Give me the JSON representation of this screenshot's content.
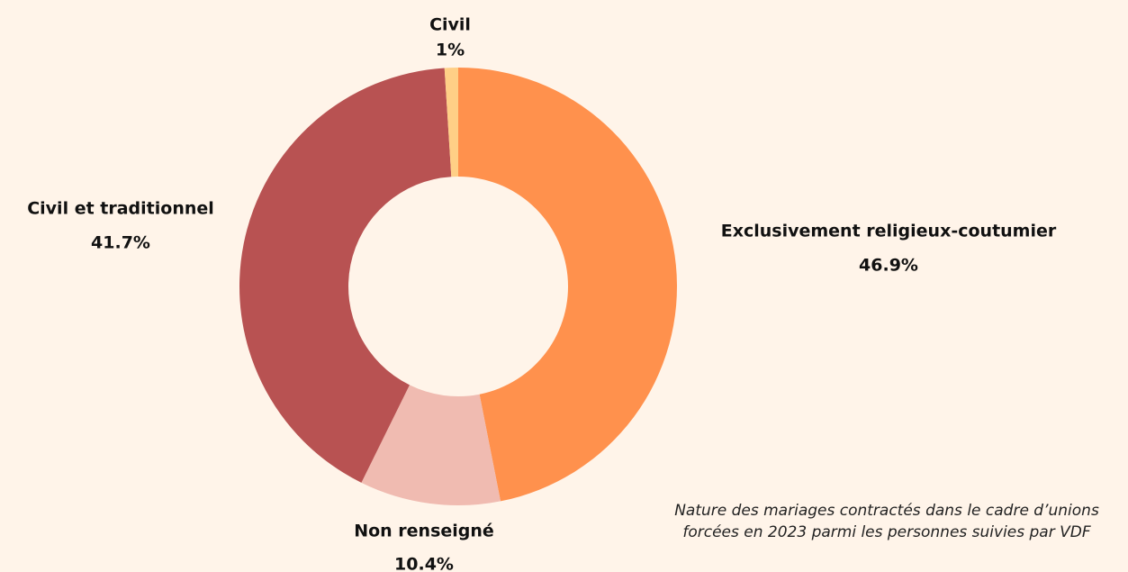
{
  "chart_data": {
    "type": "donut",
    "categories": [
      "Exclusivement religieux-coutumier",
      "Non renseigné",
      "Civil et traditionnel",
      "Civil"
    ],
    "values": [
      46.9,
      10.4,
      41.7,
      1
    ],
    "value_labels": [
      "46.9%",
      "10.4%",
      "41.7%",
      "1%"
    ],
    "colors": [
      "#ff914d",
      "#f0bbb1",
      "#b85252",
      "#ffcf86"
    ],
    "caption": "Nature des mariages contractés dans le cadre d’unions forcées en 2023 parmi les personnes suivies par VDF"
  }
}
